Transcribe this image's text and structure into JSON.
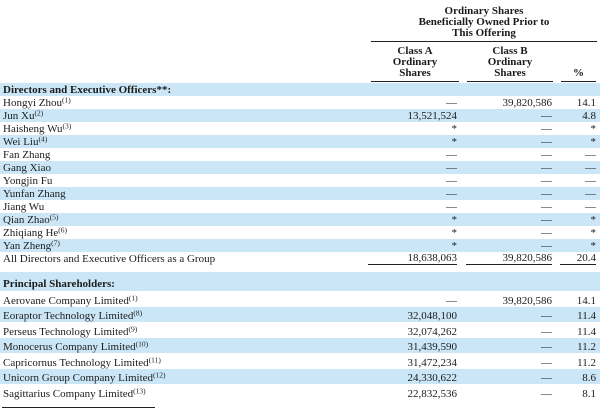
{
  "colors": {
    "stripe": "#cbe7f7"
  },
  "table": {
    "header": {
      "group_title": "Ordinary Shares\nBeneficially Owned Prior to\nThis Offering",
      "col_a": "Class A\nOrdinary\nShares",
      "col_b": "Class B\nOrdinary\nShares",
      "col_pct": "%"
    },
    "sections": [
      {
        "title": "Directors and Executive Officers**:",
        "rows": [
          {
            "name": "Hongyi Zhou",
            "sup": "(1)",
            "a": "—",
            "b": "39,820,586",
            "pct": "14.1"
          },
          {
            "name": "Jun Xu",
            "sup": "(2)",
            "a": "13,521,524",
            "b": "—",
            "pct": "4.8"
          },
          {
            "name": "Haisheng Wu",
            "sup": "(3)",
            "a": "*",
            "b": "—",
            "pct": "*"
          },
          {
            "name": "Wei Liu",
            "sup": "(4)",
            "a": "*",
            "b": "—",
            "pct": "*"
          },
          {
            "name": "Fan Zhang",
            "sup": "",
            "a": "—",
            "b": "—",
            "pct": "—"
          },
          {
            "name": "Gang Xiao",
            "sup": "",
            "a": "—",
            "b": "—",
            "pct": "—"
          },
          {
            "name": "Yongjin Fu",
            "sup": "",
            "a": "—",
            "b": "—",
            "pct": "—"
          },
          {
            "name": "Yunfan Zhang",
            "sup": "",
            "a": "—",
            "b": "—",
            "pct": "—"
          },
          {
            "name": "Jiang Wu",
            "sup": "",
            "a": "—",
            "b": "—",
            "pct": "—"
          },
          {
            "name": "Qian Zhao",
            "sup": "(5)",
            "a": "*",
            "b": "—",
            "pct": "*"
          },
          {
            "name": "Zhiqiang He",
            "sup": "(6)",
            "a": "*",
            "b": "—",
            "pct": "*"
          },
          {
            "name": "Yan Zheng",
            "sup": "(7)",
            "a": "*",
            "b": "—",
            "pct": "*"
          }
        ],
        "total": {
          "name": "All Directors and Executive Officers as a Group",
          "a": "18,638,063",
          "b": "39,820,586",
          "pct": "20.4"
        }
      },
      {
        "title": "Principal Shareholders:",
        "rows": [
          {
            "name": "Aerovane Company Limited",
            "sup": "(1)",
            "a": "—",
            "b": "39,820,586",
            "pct": "14.1"
          },
          {
            "name": "Eoraptor Technology Limited",
            "sup": "(8)",
            "a": "32,048,100",
            "b": "—",
            "pct": "11.4"
          },
          {
            "name": "Perseus Technology Limited",
            "sup": "(9)",
            "a": "32,074,262",
            "b": "—",
            "pct": "11.4"
          },
          {
            "name": "Monocerus Company Limited",
            "sup": "(10)",
            "a": "31,439,590",
            "b": "—",
            "pct": "11.2"
          },
          {
            "name": "Capricornus Technology Limited",
            "sup": "(11)",
            "a": "31,472,234",
            "b": "—",
            "pct": "11.2"
          },
          {
            "name": "Unicorn Group Company Limited",
            "sup": "(12)",
            "a": "24,330,622",
            "b": "—",
            "pct": "8.6"
          },
          {
            "name": "Sagittarius Company Limited",
            "sup": "(13)",
            "a": "22,832,536",
            "b": "—",
            "pct": "8.1"
          }
        ],
        "total": null
      }
    ]
  }
}
